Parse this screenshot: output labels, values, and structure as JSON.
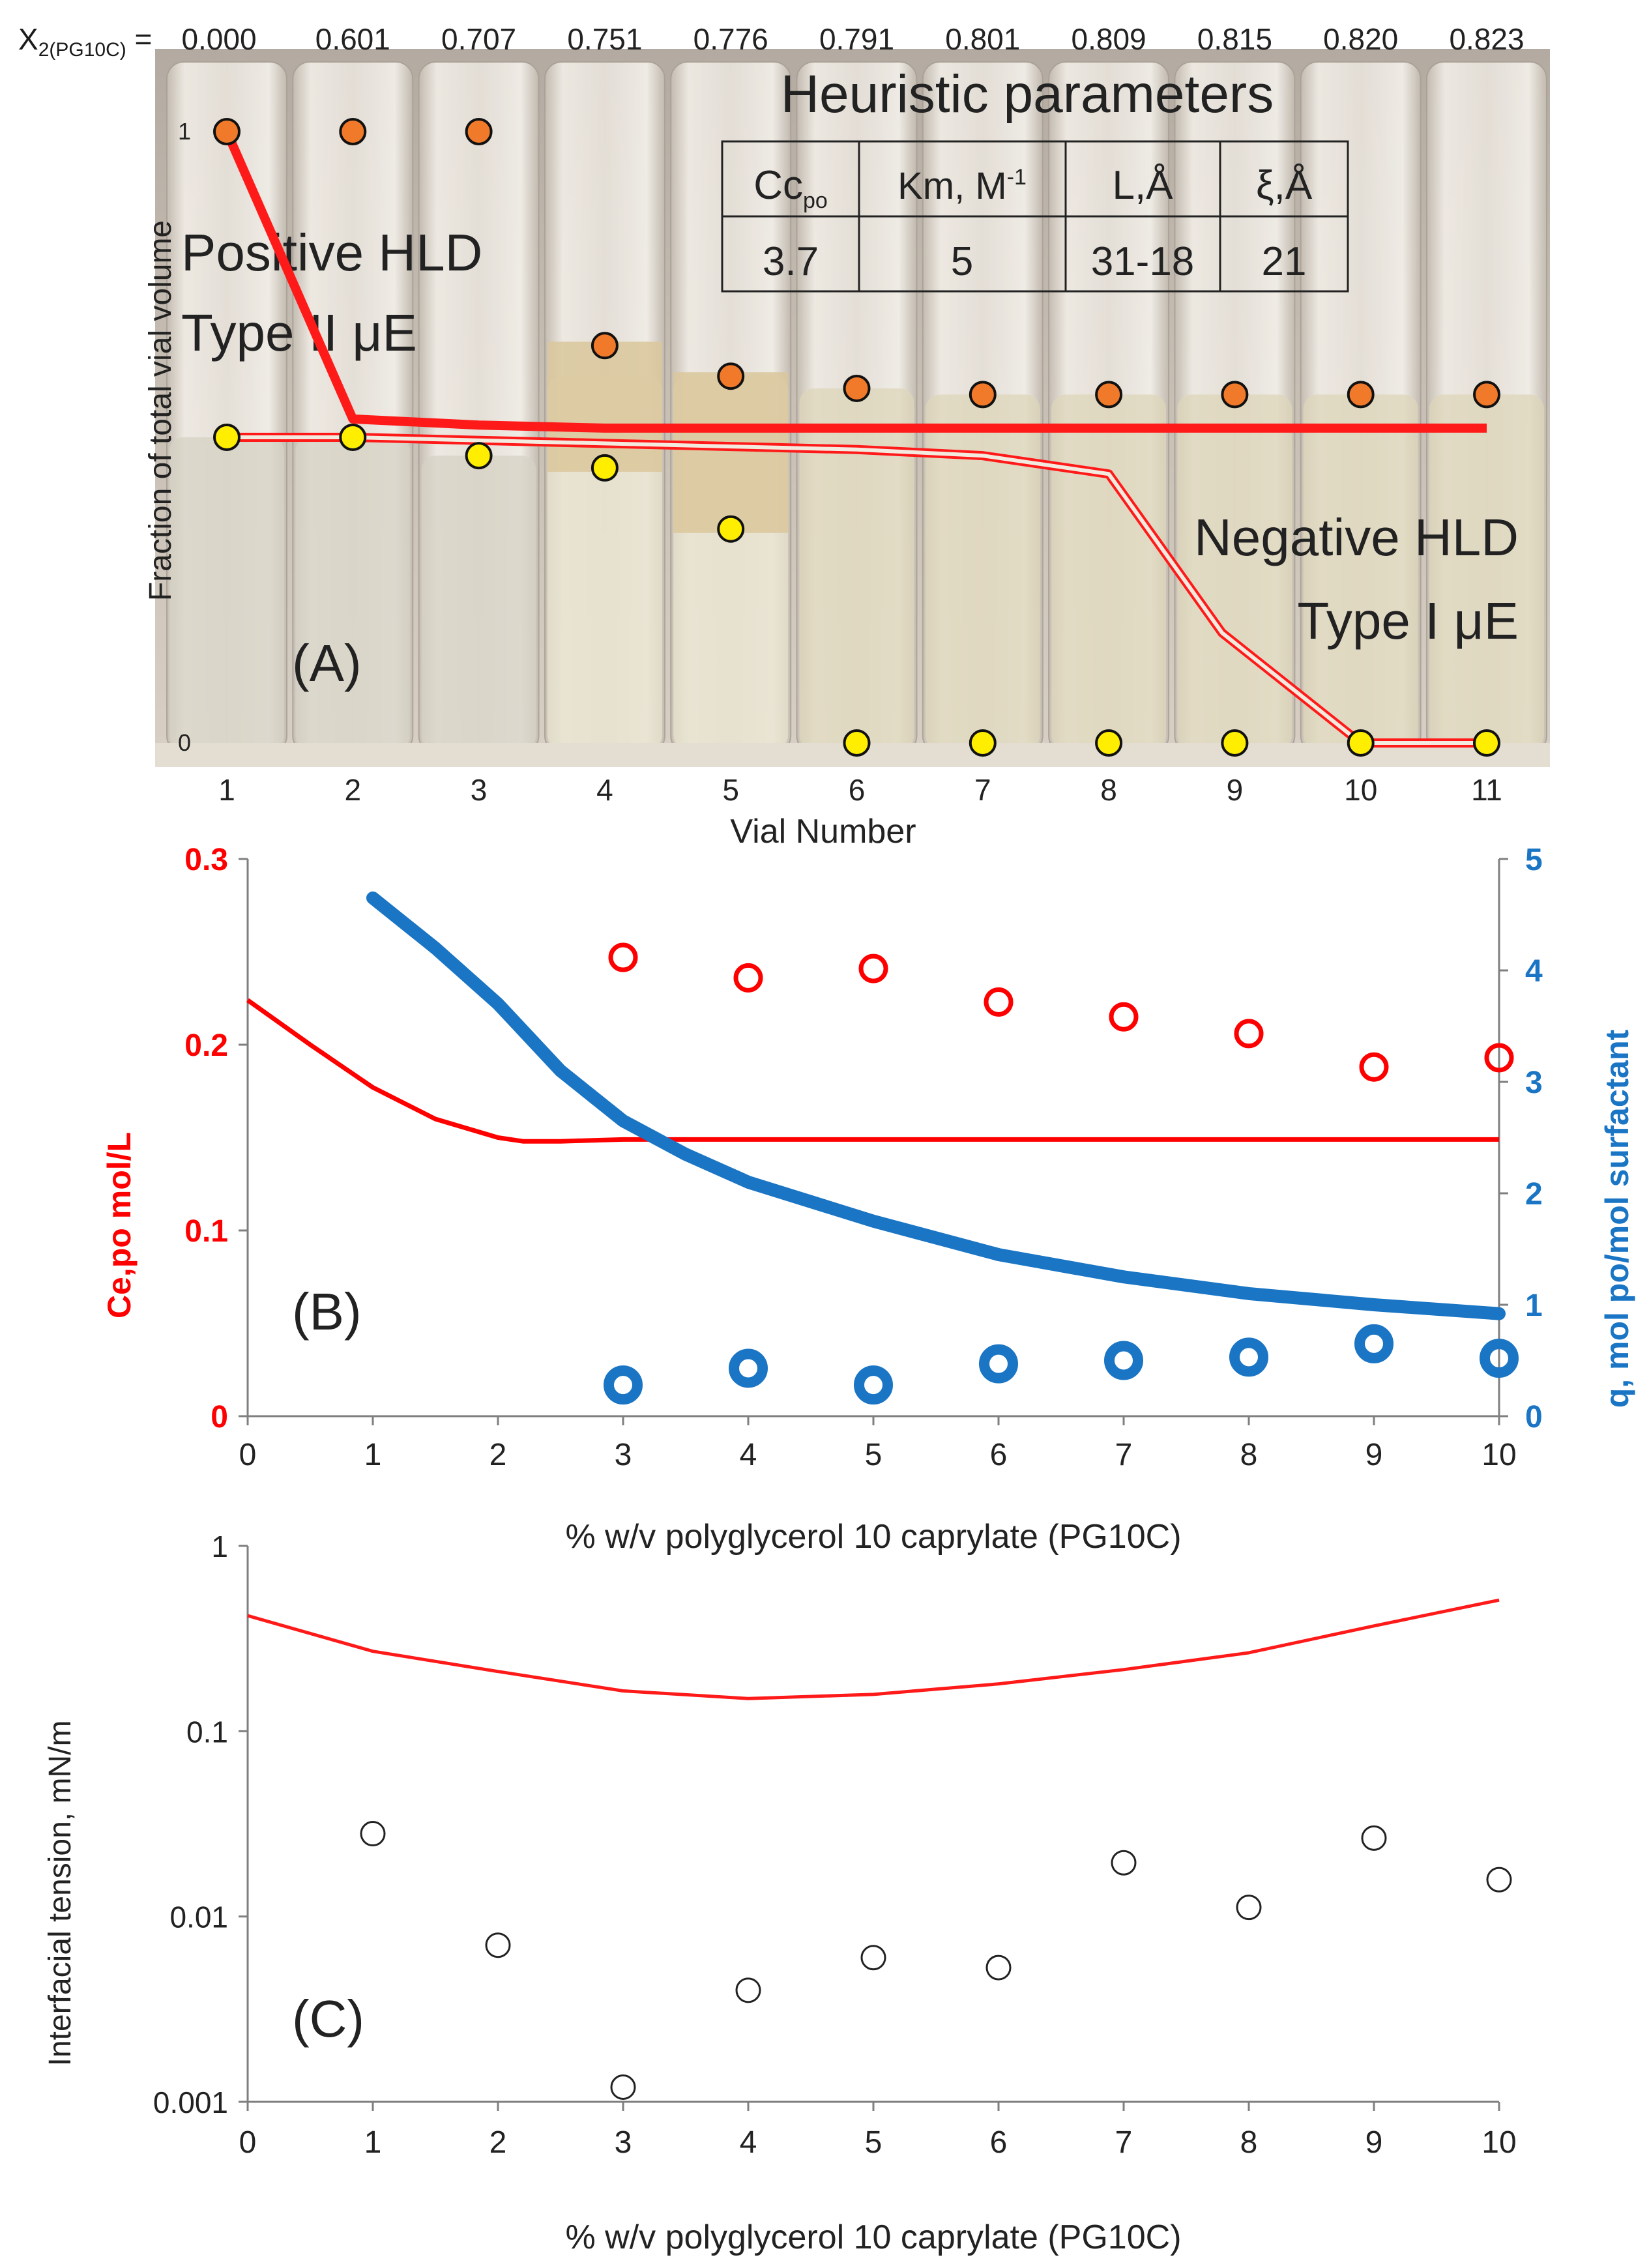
{
  "chart_data": [
    {
      "type": "scatter",
      "panel_label": "(A)",
      "background": "photograph of 11 glass vials with phase boundaries",
      "title": "",
      "xlabel": "Vial Number",
      "ylabel": "Fraction of total vial volume",
      "xlim": [
        1,
        11
      ],
      "ylim": [
        0,
        1
      ],
      "x_ticks": [
        "1",
        "2",
        "3",
        "4",
        "5",
        "6",
        "7",
        "8",
        "9",
        "10",
        "11"
      ],
      "y_ticks": [
        "0",
        "1"
      ],
      "top_axis_label": "X2(PG10C) =",
      "top_axis_values": [
        "0.000",
        "0.601",
        "0.707",
        "0.751",
        "0.776",
        "0.791",
        "0.801",
        "0.809",
        "0.815",
        "0.820",
        "0.823"
      ],
      "series": [
        {
          "marker": "orange-circle",
          "x": [
            1,
            2,
            3,
            4,
            5,
            6,
            7,
            8,
            9,
            10,
            11
          ],
          "y": [
            1.0,
            1.0,
            1.0,
            0.65,
            0.6,
            0.58,
            0.57,
            0.57,
            0.57,
            0.57,
            0.57
          ]
        },
        {
          "marker": "yellow-circle",
          "x": [
            1,
            2,
            3,
            4,
            5,
            6,
            7,
            8,
            9,
            10,
            11
          ],
          "y": [
            0.5,
            0.5,
            0.47,
            0.45,
            0.35,
            0.0,
            0.0,
            0.0,
            0.0,
            0.0,
            0.0
          ]
        },
        {
          "style": "thick-red-line",
          "x": [
            1,
            2,
            3,
            4,
            5,
            6,
            7,
            8,
            9,
            10,
            11
          ],
          "y": [
            1.0,
            0.53,
            0.52,
            0.515,
            0.515,
            0.515,
            0.515,
            0.515,
            0.515,
            0.515,
            0.515
          ]
        },
        {
          "style": "double-red-line",
          "x": [
            1,
            2,
            3,
            4,
            5,
            6,
            7,
            8,
            8.9,
            10,
            11
          ],
          "y": [
            0.5,
            0.5,
            0.495,
            0.49,
            0.485,
            0.48,
            0.47,
            0.44,
            0.18,
            0.0,
            0.0
          ]
        }
      ],
      "annotations": [
        "Positive HLD",
        "Type II μE",
        "Negative HLD",
        "Type I μE"
      ],
      "table": {
        "title": "Heuristic parameters",
        "headers": [
          "Cc",
          "Km, M",
          "L,Å",
          "ξ,Å"
        ],
        "header_subscripts": [
          "po",
          ""
        ],
        "header_superscripts": [
          "",
          "-1"
        ],
        "values": [
          "3.7",
          "5",
          "31-18",
          "21"
        ]
      }
    },
    {
      "type": "line",
      "panel_label": "(B)",
      "title": "",
      "xlabel": "% w/v   polyglycerol 10 caprylate (PG10C)",
      "ylabel_left": "Ce,po  mol/L",
      "ylabel_right": "q, mol po/mol surfactant",
      "xlim": [
        0,
        10
      ],
      "ylim_left": [
        0,
        0.3
      ],
      "ylim_right": [
        0,
        5
      ],
      "x_ticks": [
        "0",
        "1",
        "2",
        "3",
        "4",
        "5",
        "6",
        "7",
        "8",
        "9",
        "10"
      ],
      "y_ticks_left": [
        "0",
        "0.1",
        "0.2",
        "0.3"
      ],
      "y_ticks_right": [
        "0",
        "1",
        "2",
        "3",
        "4",
        "5"
      ],
      "colors": {
        "left": "#ff0000",
        "right": "#1a75c4"
      },
      "series": [
        {
          "axis": "left",
          "style": "red-line",
          "x": [
            0,
            0.5,
            1,
            1.5,
            2,
            2.2,
            2.5,
            3,
            4,
            5,
            6,
            7,
            8,
            9,
            10
          ],
          "y": [
            0.224,
            0.2,
            0.177,
            0.16,
            0.15,
            0.148,
            0.148,
            0.149,
            0.149,
            0.149,
            0.149,
            0.149,
            0.149,
            0.149,
            0.149
          ]
        },
        {
          "axis": "left",
          "style": "red-open-circles",
          "x": [
            3,
            4,
            5,
            6,
            7,
            8,
            9,
            10
          ],
          "y": [
            0.247,
            0.236,
            0.241,
            0.223,
            0.215,
            0.206,
            0.188,
            0.193
          ]
        },
        {
          "axis": "right",
          "style": "blue-thick-line",
          "x": [
            1,
            1.5,
            2,
            2.5,
            3,
            3.5,
            4,
            5,
            6,
            7,
            8,
            9,
            10
          ],
          "y": [
            4.65,
            4.2,
            3.7,
            3.1,
            2.65,
            2.35,
            2.1,
            1.75,
            1.45,
            1.25,
            1.1,
            1.0,
            0.92
          ]
        },
        {
          "axis": "right",
          "style": "blue-open-circles",
          "x": [
            3,
            4,
            5,
            6,
            7,
            8,
            9,
            10
          ],
          "y": [
            0.28,
            0.43,
            0.28,
            0.47,
            0.5,
            0.53,
            0.65,
            0.52
          ]
        }
      ]
    },
    {
      "type": "line",
      "panel_label": "(C)",
      "title": "",
      "xlabel": "% w/v   polyglycerol 10 caprylate (PG10C)",
      "ylabel": "Interfacial tension, mN/m",
      "y_scale": "log",
      "xlim": [
        0,
        10
      ],
      "ylim": [
        0.001,
        1
      ],
      "x_ticks": [
        "0",
        "1",
        "2",
        "3",
        "4",
        "5",
        "6",
        "7",
        "8",
        "9",
        "10"
      ],
      "y_ticks": [
        "0.001",
        "0.01",
        "0.1",
        "1"
      ],
      "series": [
        {
          "style": "red-line",
          "x": [
            0,
            1,
            2,
            3,
            4,
            5,
            6,
            7,
            8,
            9,
            10
          ],
          "y": [
            0.42,
            0.27,
            0.21,
            0.165,
            0.15,
            0.158,
            0.18,
            0.215,
            0.265,
            0.37,
            0.51
          ]
        },
        {
          "style": "black-open-circles",
          "x": [
            1,
            2,
            3,
            4,
            5,
            6,
            7,
            8,
            9,
            10
          ],
          "y": [
            0.028,
            0.007,
            0.0012,
            0.004,
            0.006,
            0.0053,
            0.0195,
            0.0112,
            0.0265,
            0.0158
          ]
        }
      ]
    }
  ]
}
